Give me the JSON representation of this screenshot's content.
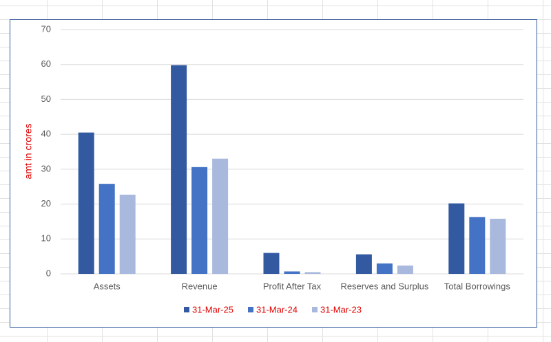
{
  "chart_data": {
    "type": "bar",
    "y_label": "amt in crores",
    "categories": [
      "Assets",
      "Revenue",
      "Profit After Tax",
      "Reserves and Surplus",
      "Total Borrowings"
    ],
    "series": [
      {
        "name": "31-Mar-25",
        "color": "#335aa1",
        "values": [
          40.5,
          59.8,
          6,
          5.6,
          20.2
        ]
      },
      {
        "name": "31-Mar-24",
        "color": "#4472c4",
        "values": [
          25.8,
          30.6,
          0.7,
          3,
          16.3
        ]
      },
      {
        "name": "31-Mar-23",
        "color": "#a9b8dd",
        "values": [
          22.7,
          33,
          0.5,
          2.4,
          15.8
        ]
      }
    ],
    "ylim": [
      0,
      70
    ],
    "yticks": [
      0,
      10,
      20,
      30,
      40,
      50,
      60,
      70
    ],
    "grid": true,
    "legend": "bottom"
  }
}
